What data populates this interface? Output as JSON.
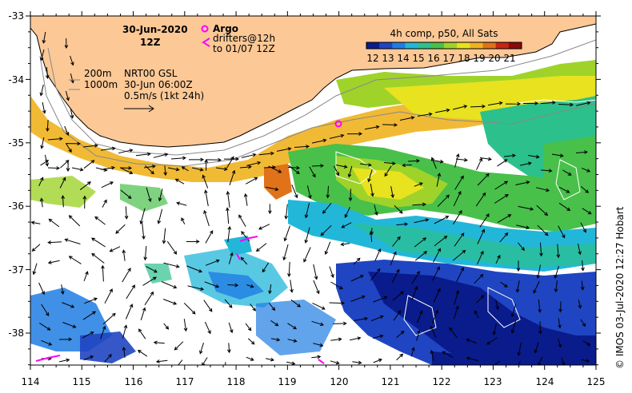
{
  "header": {
    "date": "30-Jun-2020",
    "hour": "12Z"
  },
  "legend_argo": {
    "argo_label": "Argo",
    "drifters_label": "drifters@12h",
    "drifters_to": "to 01/07 12Z",
    "argo_color": "#ff00ff"
  },
  "colorbar": {
    "title": "4h comp, p50, All Sats",
    "ticks": [
      "12",
      "13",
      "14",
      "15",
      "16",
      "17",
      "18",
      "19",
      "20",
      "21"
    ],
    "colors": [
      "#0a1b8c",
      "#1f45c2",
      "#1f7de3",
      "#22b7d9",
      "#2cc08c",
      "#48c04a",
      "#9fd32a",
      "#e8e21f",
      "#f0b21f",
      "#e0721a",
      "#c82414",
      "#8c0a0a"
    ]
  },
  "info": {
    "depth_200": "200m",
    "depth_1000": "1000m",
    "product": "NRT00 GSL",
    "time": "30-Jun 06:00Z",
    "scale": "0.5m/s (1kt 24h)"
  },
  "credit": "© IMOS 03-Jul-2020 12:27 Hobart",
  "axes": {
    "lon_ticks": [
      "114",
      "115",
      "116",
      "117",
      "118",
      "119",
      "120",
      "121",
      "122",
      "123",
      "124",
      "125"
    ],
    "lat_ticks": [
      "-33",
      "-34",
      "-35",
      "-36",
      "-37",
      "-38"
    ]
  },
  "land_color": "#fbc896"
}
